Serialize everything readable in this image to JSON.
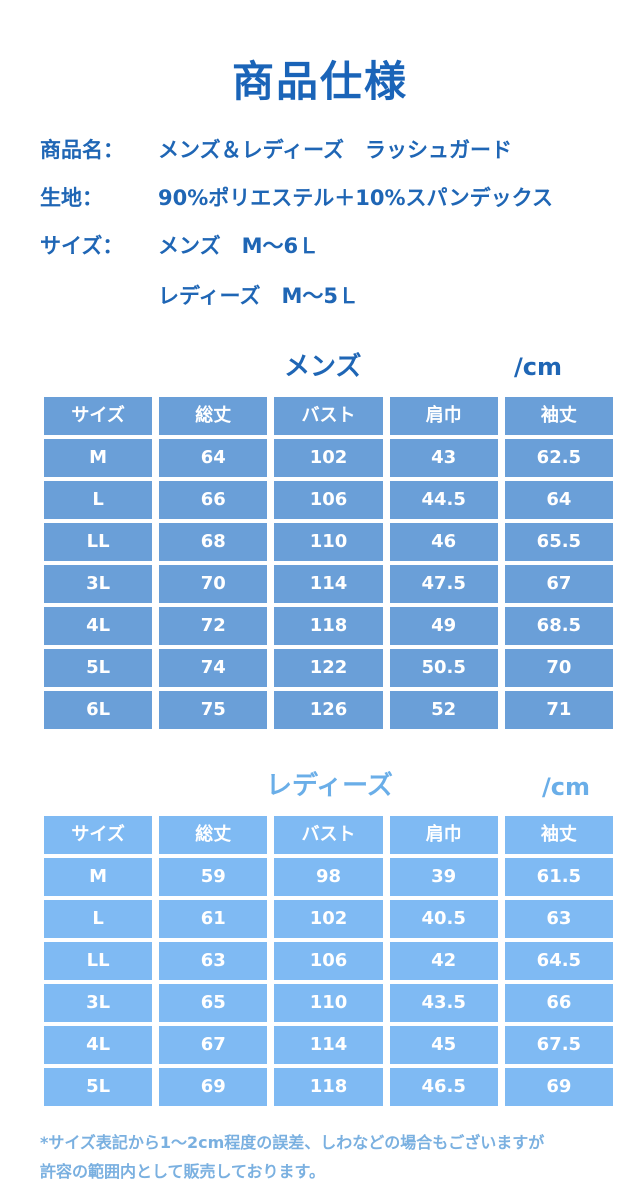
{
  "title": "商品仕様",
  "specs": [
    {
      "key": "商品名：",
      "value": "メンズ＆レディーズ　ラッシュガード"
    },
    {
      "key": "生地：",
      "value": "90%ポリエステル＋10%スパンデックス"
    },
    {
      "key": "サイズ：",
      "value": "メンズ　M〜6Ｌ"
    },
    {
      "key": "",
      "value": "レディーズ　M〜5Ｌ"
    }
  ],
  "mens": {
    "heading": "メンズ",
    "unit": "/cm",
    "color": "#6a9fd8",
    "headers": [
      "サイズ",
      "総丈",
      "バスト",
      "肩巾",
      "袖丈"
    ],
    "rows": [
      [
        "M",
        "64",
        "102",
        "43",
        "62.5"
      ],
      [
        "L",
        "66",
        "106",
        "44.5",
        "64"
      ],
      [
        "LL",
        "68",
        "110",
        "46",
        "65.5"
      ],
      [
        "3L",
        "70",
        "114",
        "47.5",
        "67"
      ],
      [
        "4L",
        "72",
        "118",
        "49",
        "68.5"
      ],
      [
        "5L",
        "74",
        "122",
        "50.5",
        "70"
      ],
      [
        "6L",
        "75",
        "126",
        "52",
        "71"
      ]
    ]
  },
  "ladies": {
    "heading": "レディーズ",
    "unit": "/cm",
    "color": "#7fbaf3",
    "headers": [
      "サイズ",
      "総丈",
      "バスト",
      "肩巾",
      "袖丈"
    ],
    "rows": [
      [
        "M",
        "59",
        "98",
        "39",
        "61.5"
      ],
      [
        "L",
        "61",
        "102",
        "40.5",
        "63"
      ],
      [
        "LL",
        "63",
        "106",
        "42",
        "64.5"
      ],
      [
        "3L",
        "65",
        "110",
        "43.5",
        "66"
      ],
      [
        "4L",
        "67",
        "114",
        "45",
        "67.5"
      ],
      [
        "5L",
        "69",
        "118",
        "46.5",
        "69"
      ]
    ]
  },
  "note": [
    "*サイズ表記から1〜2cm程度の誤差、しわなどの場合もございますが",
    "許容の範囲内として販売しております。"
  ]
}
